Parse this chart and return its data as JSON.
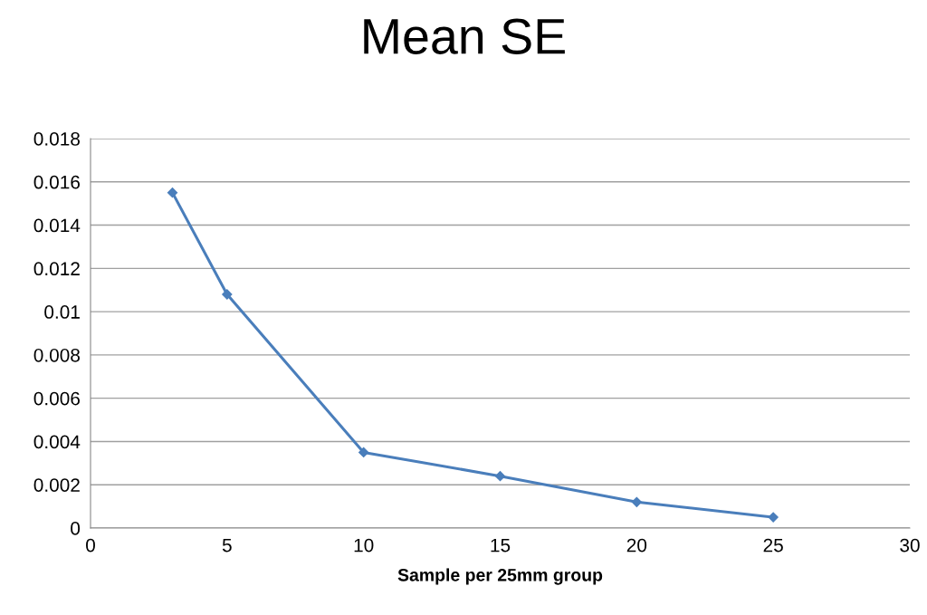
{
  "chart_data": {
    "type": "line",
    "title": "Mean SE",
    "xlabel": "Sample per 25mm group",
    "x": [
      3,
      5,
      10,
      15,
      20,
      25
    ],
    "series": [
      {
        "color": "#4a7ebb",
        "values": [
          0.0155,
          0.0108,
          0.0035,
          0.0024,
          0.0012,
          0.0005
        ]
      }
    ],
    "xlim": [
      0,
      30
    ],
    "xticks": [
      0,
      5,
      10,
      15,
      20,
      25,
      30
    ],
    "ylim": [
      0,
      0.018
    ],
    "yticks": [
      0,
      0.002,
      0.004,
      0.006,
      0.008,
      0.01,
      0.012,
      0.014,
      0.016,
      0.018
    ],
    "grid": "y",
    "marker": "diamond",
    "line_style": "solid"
  }
}
